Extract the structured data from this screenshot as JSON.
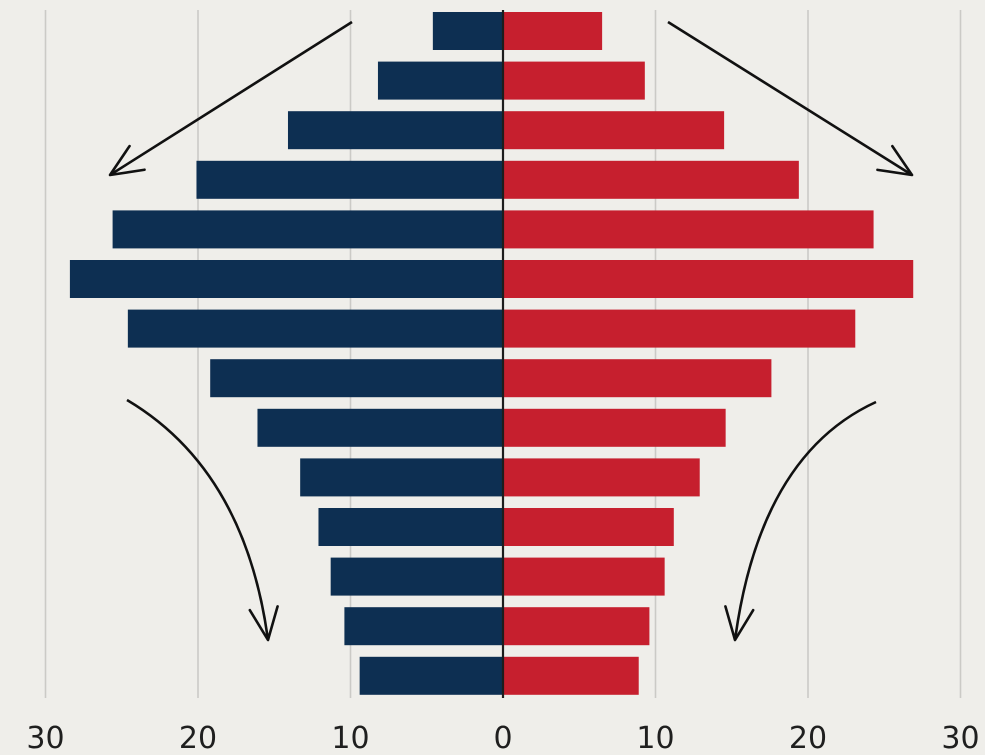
{
  "chart_data": {
    "type": "bar",
    "subtype": "population-pyramid",
    "orientation": "horizontal",
    "xlim": [
      -30,
      30
    ],
    "x_tick_labels": [
      "30",
      "20",
      "10",
      "0",
      "10",
      "20",
      "30"
    ],
    "grid": "vertical",
    "series": [
      {
        "side": "left",
        "color": "#0d2f52",
        "values": [
          4.6,
          8.2,
          14.1,
          20.1,
          25.6,
          28.4,
          24.6,
          19.2,
          16.1,
          13.3,
          12.1,
          11.3,
          10.4,
          9.4
        ]
      },
      {
        "side": "right",
        "color": "#c61f2e",
        "values": [
          6.5,
          9.3,
          14.5,
          19.4,
          24.3,
          26.9,
          23.1,
          17.6,
          14.6,
          12.9,
          11.2,
          10.6,
          9.6,
          8.9
        ]
      }
    ],
    "annotations": [
      {
        "type": "arrow",
        "style": "straight",
        "direction": "down-left",
        "position": "top-left"
      },
      {
        "type": "arrow",
        "style": "straight",
        "direction": "down-right",
        "position": "top-right"
      },
      {
        "type": "arrow",
        "style": "curved",
        "direction": "down",
        "position": "bottom-left"
      },
      {
        "type": "arrow",
        "style": "curved",
        "direction": "down",
        "position": "bottom-right"
      }
    ]
  },
  "colors": {
    "background": "#efeeea",
    "grid": "#cbcac6",
    "axis": "#1d1d1d",
    "text": "#1f1f1f",
    "arrow": "#111111"
  }
}
